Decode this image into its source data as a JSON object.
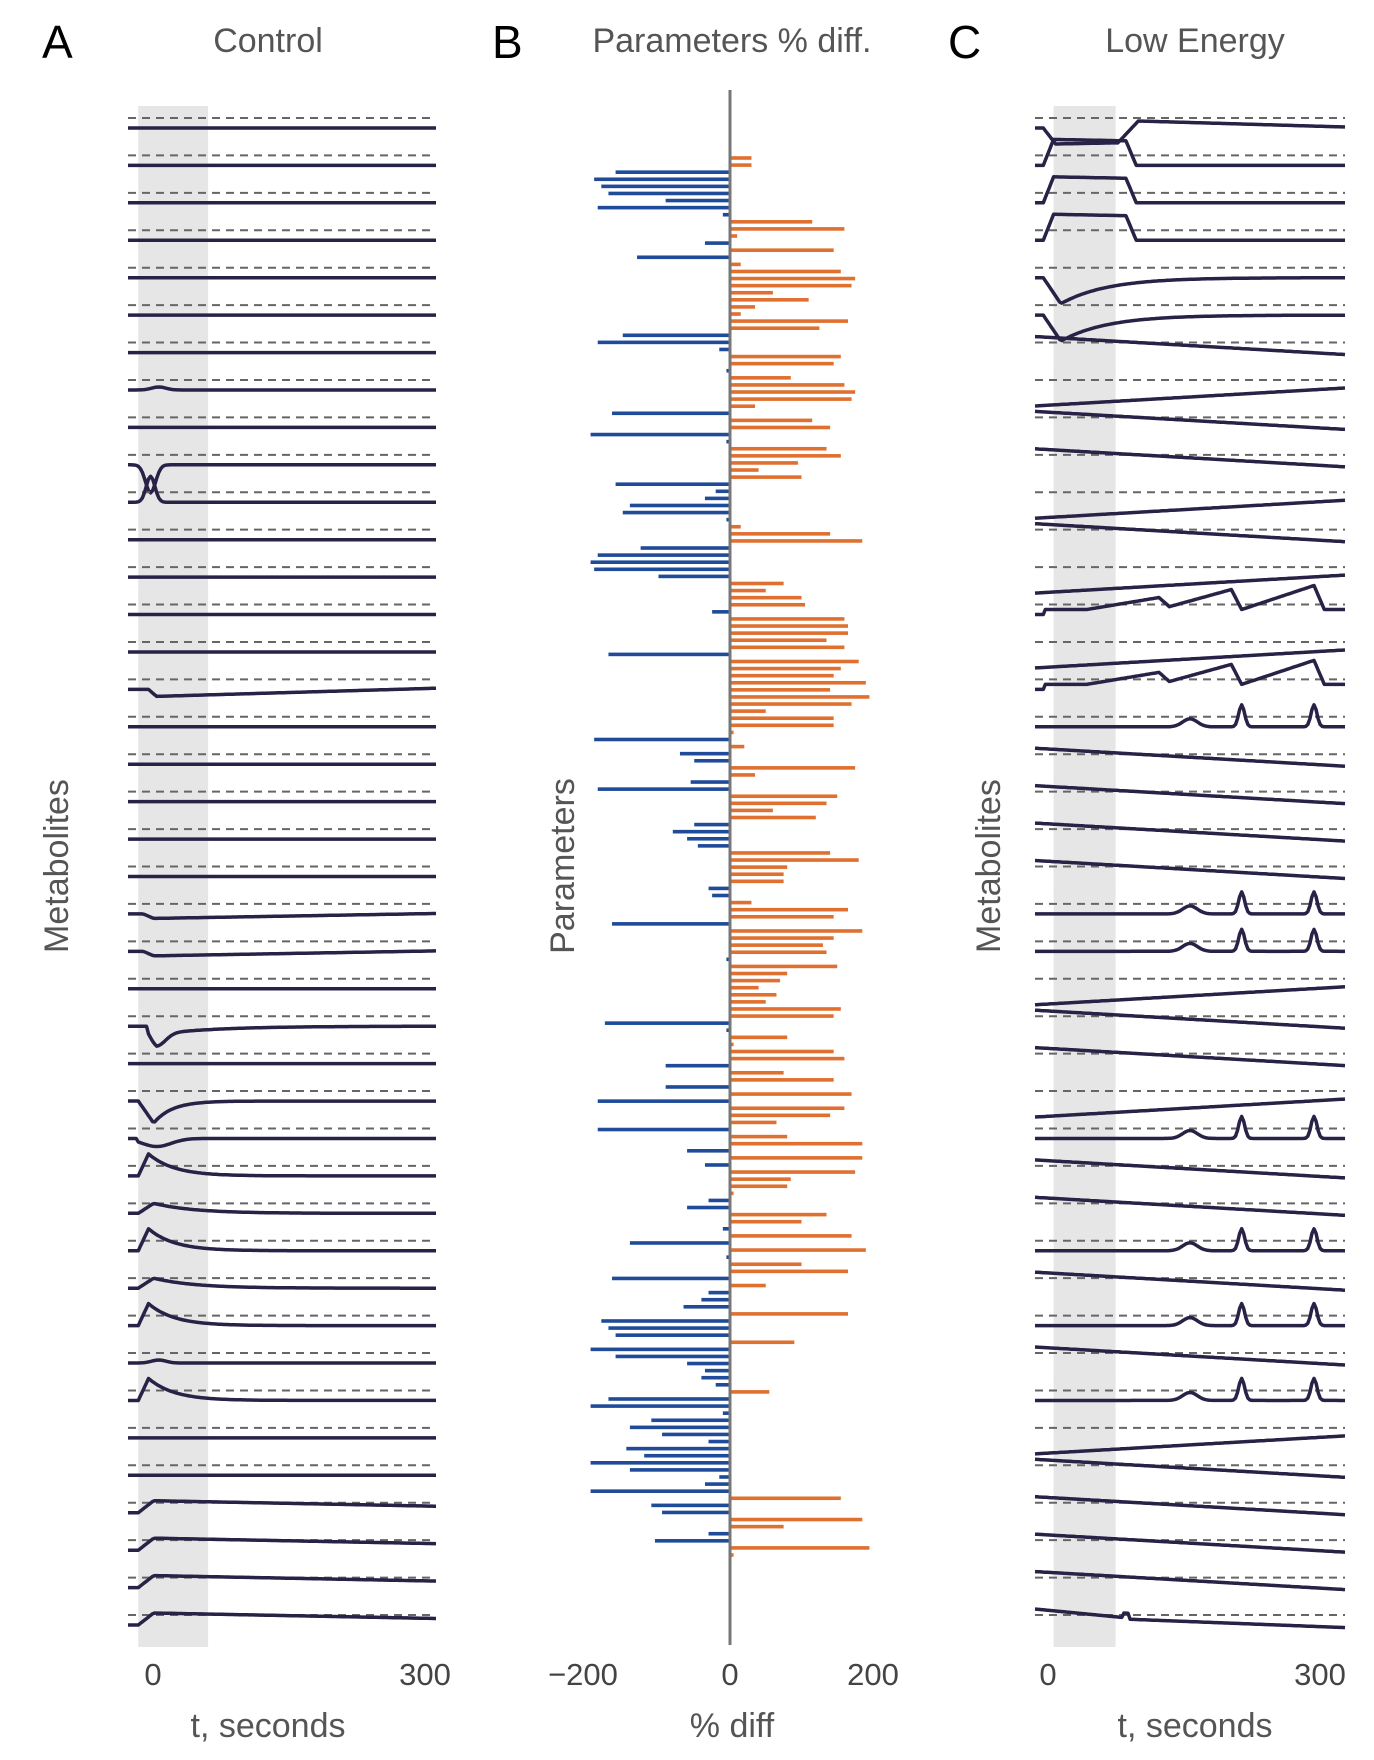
{
  "chart_data": [
    {
      "type": "line",
      "panel": "A",
      "title": "Control",
      "xlabel": "t, seconds",
      "ylabel": "Metabolites",
      "xticks": [
        "0",
        "300"
      ],
      "xlim": [
        0,
        300
      ],
      "stimulus_window_s": [
        10,
        78
      ],
      "trace_color": "#2a2147",
      "traces": [
        {
          "baseline": 0.0,
          "shape": "flat"
        },
        {
          "baseline": 0.0,
          "shape": "flat"
        },
        {
          "baseline": 0.0,
          "shape": "flat"
        },
        {
          "baseline": 0.0,
          "shape": "flat"
        },
        {
          "baseline": 0.0,
          "shape": "flat"
        },
        {
          "baseline": 0.0,
          "shape": "flat"
        },
        {
          "baseline": 0.0,
          "shape": "flat"
        },
        {
          "baseline": 0.0,
          "shape": "small-bump"
        },
        {
          "baseline": 0.0,
          "shape": "flat"
        },
        {
          "baseline": 0.0,
          "shape": "deep-dip"
        },
        {
          "baseline": 0.0,
          "shape": "sharp-peak"
        },
        {
          "baseline": 0.0,
          "shape": "flat"
        },
        {
          "baseline": 0.0,
          "shape": "flat"
        },
        {
          "baseline": 0.0,
          "shape": "flat"
        },
        {
          "baseline": 0.0,
          "shape": "flat"
        },
        {
          "baseline": 0.0,
          "shape": "dip-then-rise"
        },
        {
          "baseline": 0.0,
          "shape": "flat"
        },
        {
          "baseline": 0.0,
          "shape": "flat"
        },
        {
          "baseline": 0.0,
          "shape": "flat"
        },
        {
          "baseline": 0.0,
          "shape": "flat"
        },
        {
          "baseline": 0.0,
          "shape": "flat"
        },
        {
          "baseline": 0.0,
          "shape": "small-dip-rise"
        },
        {
          "baseline": 0.0,
          "shape": "small-dip-rise"
        },
        {
          "baseline": 0.0,
          "shape": "flat"
        },
        {
          "baseline": 0.0,
          "shape": "dip-recover"
        },
        {
          "baseline": 0.0,
          "shape": "flat"
        },
        {
          "baseline": 0.0,
          "shape": "deep-dip-recover"
        },
        {
          "baseline": 0.0,
          "shape": "small-dip"
        },
        {
          "baseline": 0.0,
          "shape": "peak-decay"
        },
        {
          "baseline": 0.0,
          "shape": "bump-decay"
        },
        {
          "baseline": 0.0,
          "shape": "peak-decay"
        },
        {
          "baseline": 0.0,
          "shape": "bump-decay"
        },
        {
          "baseline": 0.0,
          "shape": "peak-decay"
        },
        {
          "baseline": 0.0,
          "shape": "small-bump"
        },
        {
          "baseline": 0.0,
          "shape": "peak-decay"
        },
        {
          "baseline": 0.0,
          "shape": "flat"
        },
        {
          "baseline": 0.0,
          "shape": "flat"
        },
        {
          "baseline": 0.0,
          "shape": "rise-slow-decay"
        },
        {
          "baseline": 0.0,
          "shape": "rise-slow-decay"
        },
        {
          "baseline": 0.0,
          "shape": "rise-slow-decay"
        },
        {
          "baseline": 0.0,
          "shape": "rise-slow-decay"
        }
      ]
    },
    {
      "type": "bar",
      "orientation": "horizontal",
      "panel": "B",
      "title": "Parameters % diff.",
      "xlabel": "% diff",
      "ylabel": "Parameters",
      "xticks": [
        "−200",
        "0",
        "200"
      ],
      "xlim": [
        -210,
        200
      ],
      "negative_color": "#1f4b99",
      "positive_color": "#e07030",
      "values": [
        30,
        30,
        -160,
        -190,
        -180,
        -170,
        -90,
        -185,
        -10,
        115,
        160,
        10,
        -35,
        145,
        -130,
        15,
        155,
        175,
        170,
        60,
        110,
        35,
        15,
        165,
        125,
        -150,
        -185,
        -15,
        155,
        145,
        -5,
        85,
        160,
        175,
        170,
        35,
        -165,
        115,
        140,
        -195,
        -5,
        135,
        155,
        95,
        40,
        100,
        -160,
        -20,
        -35,
        -140,
        -150,
        -5,
        15,
        140,
        185,
        -125,
        -185,
        -195,
        -190,
        -100,
        75,
        50,
        100,
        105,
        -25,
        160,
        165,
        165,
        135,
        160,
        -170,
        180,
        155,
        145,
        190,
        140,
        195,
        170,
        50,
        145,
        145,
        5,
        -190,
        20,
        -70,
        -50,
        175,
        35,
        -55,
        -185,
        150,
        135,
        60,
        120,
        -50,
        -80,
        -60,
        -45,
        140,
        180,
        80,
        75,
        75,
        -30,
        -25,
        30,
        165,
        145,
        -165,
        185,
        145,
        130,
        135,
        -5,
        150,
        80,
        70,
        40,
        65,
        50,
        155,
        145,
        -175,
        -5,
        80,
        5,
        145,
        160,
        -90,
        75,
        145,
        -90,
        170,
        -185,
        160,
        140,
        65,
        -185,
        80,
        185,
        -60,
        185,
        -35,
        175,
        85,
        80,
        5,
        -30,
        -60,
        135,
        100,
        -10,
        170,
        -140,
        190,
        -5,
        100,
        165,
        -165,
        50,
        -30,
        -40,
        -65,
        165,
        -180,
        -170,
        -160,
        90,
        -195,
        -160,
        -60,
        -35,
        -40,
        -20,
        55,
        -170,
        -195,
        -10,
        -110,
        -140,
        -95,
        -30,
        -145,
        -120,
        -195,
        -140,
        -15,
        -35,
        -195,
        155,
        -110,
        -95,
        185,
        75,
        -30,
        -105,
        195,
        5
      ]
    },
    {
      "type": "line",
      "panel": "C",
      "title": "Low Energy",
      "xlabel": "t, seconds",
      "ylabel": "Metabolites",
      "xticks": [
        "0",
        "300"
      ],
      "xlim": [
        0,
        300
      ],
      "stimulus_window_s": [
        18,
        78
      ],
      "trace_color": "#2a2147",
      "traces": [
        {
          "shape": "dip-then-overshoot"
        },
        {
          "shape": "plateau-up"
        },
        {
          "shape": "plateau-up"
        },
        {
          "shape": "plateau-up"
        },
        {
          "shape": "dip-slow-recover"
        },
        {
          "shape": "dip-slow-recover"
        },
        {
          "shape": "linear-down"
        },
        {
          "shape": "linear-up"
        },
        {
          "shape": "linear-down"
        },
        {
          "shape": "linear-down"
        },
        {
          "shape": "linear-up"
        },
        {
          "shape": "linear-down"
        },
        {
          "shape": "linear-up"
        },
        {
          "shape": "sawtooth-oscillation"
        },
        {
          "shape": "linear-up"
        },
        {
          "shape": "sawtooth-oscillation"
        },
        {
          "shape": "spikes"
        },
        {
          "shape": "linear-down"
        },
        {
          "shape": "linear-down"
        },
        {
          "shape": "linear-down"
        },
        {
          "shape": "linear-down"
        },
        {
          "shape": "spikes"
        },
        {
          "shape": "spikes"
        },
        {
          "shape": "linear-up"
        },
        {
          "shape": "linear-down"
        },
        {
          "shape": "linear-down"
        },
        {
          "shape": "linear-up"
        },
        {
          "shape": "spikes"
        },
        {
          "shape": "linear-down"
        },
        {
          "shape": "linear-down"
        },
        {
          "shape": "spikes"
        },
        {
          "shape": "linear-down"
        },
        {
          "shape": "spikes"
        },
        {
          "shape": "linear-down"
        },
        {
          "shape": "spikes"
        },
        {
          "shape": "linear-up"
        },
        {
          "shape": "linear-down"
        },
        {
          "shape": "linear-down"
        },
        {
          "shape": "linear-down"
        },
        {
          "shape": "linear-down"
        },
        {
          "shape": "linear-down-step"
        }
      ]
    }
  ]
}
